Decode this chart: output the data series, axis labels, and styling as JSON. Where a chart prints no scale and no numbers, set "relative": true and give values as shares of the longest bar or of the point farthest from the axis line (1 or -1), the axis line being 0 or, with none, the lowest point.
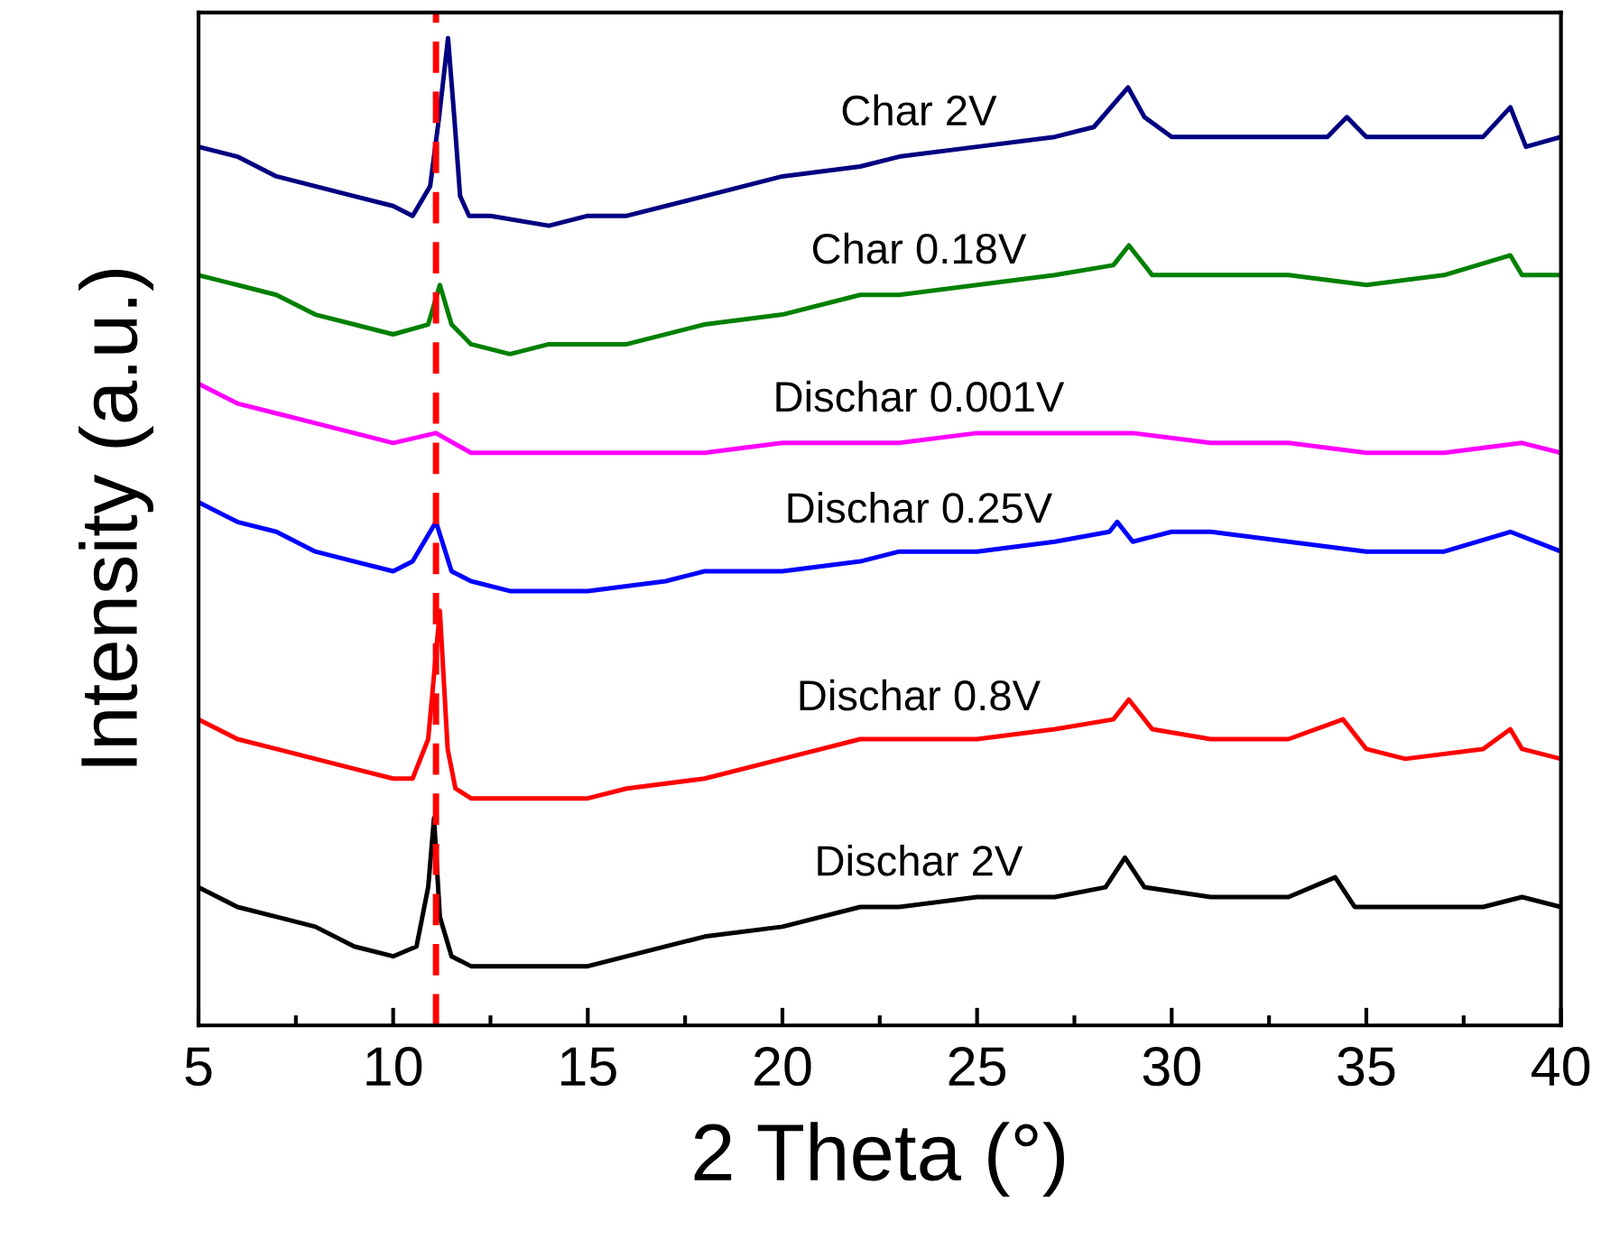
{
  "chart_data": {
    "type": "line",
    "relative": true,
    "xlabel": "2 Theta (°)",
    "ylabel": "Intensity (a.u.)",
    "xlim": [
      5,
      40
    ],
    "xticks": [
      5,
      10,
      15,
      20,
      25,
      30,
      35,
      40
    ],
    "tick_labels": "x",
    "grid": false,
    "legend": false,
    "marker": "none",
    "line_style": "solid",
    "ref_lines": [
      {
        "axis": "x",
        "value": 11.1,
        "label": null,
        "color": "#ff0000",
        "line_style": "dashed"
      }
    ],
    "series": [
      {
        "name": "Char 2V",
        "color": "#000080",
        "x": [
          5,
          6,
          7,
          8,
          9,
          10,
          10.5,
          10.95,
          11.18,
          11.41,
          11.57,
          11.72,
          11.95,
          12.5,
          14,
          15,
          16,
          18,
          20,
          22,
          23,
          25,
          27,
          28,
          28.88,
          29.3,
          30,
          32,
          34,
          34.5,
          35,
          36,
          37,
          38,
          38.7,
          39.1,
          40
        ],
        "values": [
          0.89,
          0.88,
          0.86,
          0.85,
          0.84,
          0.83,
          0.82,
          0.85,
          0.92,
          1.0,
          0.92,
          0.84,
          0.82,
          0.82,
          0.81,
          0.82,
          0.82,
          0.84,
          0.86,
          0.87,
          0.88,
          0.89,
          0.9,
          0.91,
          0.95,
          0.92,
          0.9,
          0.9,
          0.9,
          0.92,
          0.9,
          0.9,
          0.9,
          0.9,
          0.93,
          0.89,
          0.9
        ]
      },
      {
        "name": "Char 0.18V",
        "color": "#008000",
        "x": [
          5,
          6,
          7,
          8,
          9,
          10,
          10.9,
          11.2,
          11.5,
          12,
          13,
          14,
          15,
          16,
          18,
          20,
          22,
          23,
          25,
          27,
          28.5,
          28.9,
          29.5,
          31,
          33,
          35,
          37,
          38.7,
          39,
          40
        ],
        "values": [
          0.76,
          0.75,
          0.74,
          0.72,
          0.71,
          0.7,
          0.71,
          0.75,
          0.71,
          0.69,
          0.68,
          0.69,
          0.69,
          0.69,
          0.71,
          0.72,
          0.74,
          0.74,
          0.75,
          0.76,
          0.77,
          0.79,
          0.76,
          0.76,
          0.76,
          0.75,
          0.76,
          0.78,
          0.76,
          0.76
        ]
      },
      {
        "name": "Dischar 0.001V",
        "color": "#ff00ff",
        "x": [
          5,
          6,
          7,
          8,
          9,
          10,
          11.1,
          12,
          14,
          16,
          18,
          20,
          22,
          23,
          25,
          27,
          29,
          31,
          33,
          35,
          37,
          39,
          40
        ],
        "values": [
          0.65,
          0.63,
          0.62,
          0.61,
          0.6,
          0.59,
          0.6,
          0.58,
          0.58,
          0.58,
          0.58,
          0.59,
          0.59,
          0.59,
          0.6,
          0.6,
          0.6,
          0.59,
          0.59,
          0.58,
          0.58,
          0.59,
          0.58
        ]
      },
      {
        "name": "Dischar 0.25V",
        "color": "#0000ff",
        "x": [
          5,
          6,
          7,
          8,
          9,
          10,
          10.5,
          11.1,
          11.5,
          12,
          13,
          15,
          17,
          18,
          20,
          22,
          23,
          25,
          27,
          28.4,
          28.6,
          29,
          30,
          31,
          33,
          35,
          37,
          38.7,
          40
        ],
        "values": [
          0.53,
          0.51,
          0.5,
          0.48,
          0.47,
          0.46,
          0.47,
          0.51,
          0.46,
          0.45,
          0.44,
          0.44,
          0.45,
          0.46,
          0.46,
          0.47,
          0.48,
          0.48,
          0.49,
          0.5,
          0.51,
          0.49,
          0.5,
          0.5,
          0.49,
          0.48,
          0.48,
          0.5,
          0.48
        ]
      },
      {
        "name": "Dischar 0.8V",
        "color": "#ff0000",
        "x": [
          5,
          6,
          7,
          8,
          9,
          10,
          10.5,
          10.9,
          11.2,
          11.4,
          11.6,
          12,
          13,
          15,
          16,
          18,
          20,
          22,
          23,
          25,
          27,
          28.5,
          28.9,
          29.5,
          31,
          33,
          34.4,
          35,
          36,
          38,
          38.7,
          39,
          40
        ],
        "values": [
          0.31,
          0.29,
          0.28,
          0.27,
          0.26,
          0.25,
          0.25,
          0.29,
          0.42,
          0.28,
          0.24,
          0.23,
          0.23,
          0.23,
          0.24,
          0.25,
          0.27,
          0.29,
          0.29,
          0.29,
          0.3,
          0.31,
          0.33,
          0.3,
          0.29,
          0.29,
          0.31,
          0.28,
          0.27,
          0.28,
          0.3,
          0.28,
          0.27
        ]
      },
      {
        "name": "Dischar 2V",
        "color": "#000000",
        "x": [
          5,
          6,
          7,
          8,
          9,
          10,
          10.6,
          10.9,
          11.05,
          11.2,
          11.5,
          12,
          13,
          15,
          16,
          18,
          20,
          22,
          23,
          25,
          27,
          28.3,
          28.8,
          29.3,
          31,
          33,
          34.2,
          34.7,
          36,
          38,
          39,
          40
        ],
        "values": [
          0.14,
          0.12,
          0.11,
          0.1,
          0.08,
          0.07,
          0.08,
          0.14,
          0.21,
          0.11,
          0.07,
          0.06,
          0.06,
          0.06,
          0.07,
          0.09,
          0.1,
          0.12,
          0.12,
          0.13,
          0.13,
          0.14,
          0.17,
          0.14,
          0.13,
          0.13,
          0.15,
          0.12,
          0.12,
          0.12,
          0.13,
          0.12
        ]
      }
    ]
  }
}
